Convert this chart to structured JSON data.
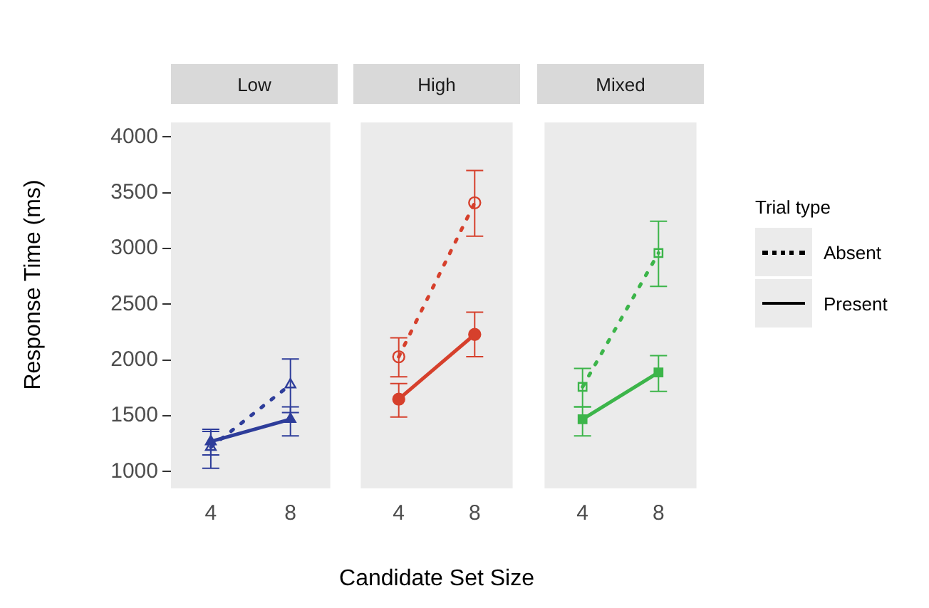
{
  "chart_data": [
    {
      "type": "line",
      "title": "Low",
      "ylabel": "Response Time (ms)",
      "categories": [
        "4",
        "8"
      ],
      "ylim": [
        850,
        4130
      ],
      "yticks": [
        1000,
        1500,
        2000,
        2500,
        3000,
        3500,
        4000
      ],
      "grid": false,
      "legend": false,
      "marker": "triangle",
      "series": [
        {
          "color": "#2e3d9a",
          "line_style": "dotted",
          "values": [
            1220,
            1780
          ],
          "errors": [
            [
              1030,
              1360
            ],
            [
              1530,
              2010
            ]
          ]
        },
        {
          "color": "#2e3d9a",
          "line_style": "solid",
          "values": [
            1270,
            1470
          ],
          "errors": [
            [
              1150,
              1380
            ],
            [
              1320,
              1580
            ]
          ]
        }
      ]
    },
    {
      "type": "line",
      "title": "High",
      "xlabel": "Candidate Set Size",
      "categories": [
        "4",
        "8"
      ],
      "ylim": [
        850,
        4130
      ],
      "tick_labels": "x",
      "grid": false,
      "legend": false,
      "marker": "circle",
      "series": [
        {
          "color": "#d6402c",
          "line_style": "dotted",
          "values": [
            2030,
            3410
          ],
          "errors": [
            [
              1850,
              2200
            ],
            [
              3110,
              3700
            ]
          ]
        },
        {
          "color": "#d6402c",
          "line_style": "solid",
          "values": [
            1650,
            2230
          ],
          "errors": [
            [
              1490,
              1790
            ],
            [
              2030,
              2430
            ]
          ]
        }
      ]
    },
    {
      "type": "line",
      "title": "Mixed",
      "legend_title": "Trial type",
      "categories": [
        "4",
        "8"
      ],
      "ylim": [
        850,
        4130
      ],
      "tick_labels": "x",
      "grid": false,
      "legend": "right",
      "marker": "square",
      "series": [
        {
          "name": "Absent",
          "color": "#3cb54a",
          "line_style": "dotted",
          "values": [
            1760,
            2960
          ],
          "errors": [
            [
              1580,
              1925
            ],
            [
              2660,
              3245
            ]
          ]
        },
        {
          "name": "Present",
          "color": "#3cb54a",
          "line_style": "solid",
          "values": [
            1470,
            1890
          ],
          "errors": [
            [
              1320,
              1580
            ],
            [
              1720,
              2040
            ]
          ]
        }
      ]
    }
  ]
}
